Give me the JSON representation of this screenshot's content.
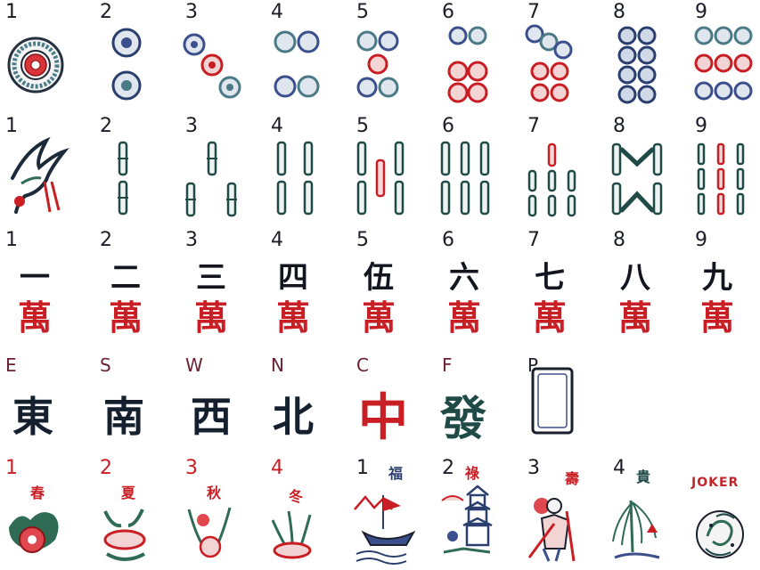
{
  "colors": {
    "ink": "#1a1f2b",
    "red": "#c81e24",
    "blue": "#3b4f8c",
    "teal": "#4a7a86",
    "green": "#2f6b55"
  },
  "rows": {
    "dots": [
      "1",
      "2",
      "3",
      "4",
      "5",
      "6",
      "7",
      "8",
      "9"
    ],
    "bamboo": [
      "1",
      "2",
      "3",
      "4",
      "5",
      "6",
      "7",
      "8",
      "9"
    ],
    "characters": {
      "numbers": [
        "1",
        "2",
        "3",
        "4",
        "5",
        "6",
        "7",
        "8",
        "9"
      ],
      "top": [
        "一",
        "二",
        "三",
        "四",
        "伍",
        "六",
        "七",
        "八",
        "九"
      ],
      "bottom": "萬"
    },
    "honors": [
      {
        "label": "E",
        "glyph": "東"
      },
      {
        "label": "S",
        "glyph": "南"
      },
      {
        "label": "W",
        "glyph": "西"
      },
      {
        "label": "N",
        "glyph": "北"
      },
      {
        "label": "C",
        "glyph": "中"
      },
      {
        "label": "F",
        "glyph": "發"
      },
      {
        "label": "P",
        "glyph": ""
      }
    ],
    "flowers": [
      {
        "label": "1",
        "glyph": "春"
      },
      {
        "label": "2",
        "glyph": "夏"
      },
      {
        "label": "3",
        "glyph": "秋"
      },
      {
        "label": "4",
        "glyph": "冬"
      },
      {
        "label": "1",
        "glyph": "福"
      },
      {
        "label": "2",
        "glyph": "祿"
      },
      {
        "label": "3",
        "glyph": "壽"
      },
      {
        "label": "4",
        "glyph": "貴"
      }
    ],
    "joker": "JOKER"
  },
  "icons": {
    "dot": "circle-dot-icon",
    "bamboo": "bamboo-stick-icon",
    "bird": "crane-bird-icon",
    "blank": "blank-frame-icon",
    "joker": "joker-swirl-icon"
  }
}
